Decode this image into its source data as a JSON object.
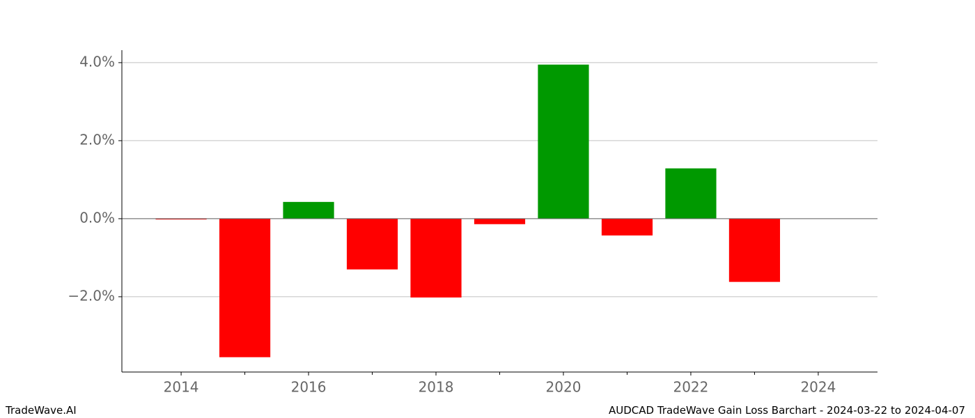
{
  "chart_data": {
    "type": "bar",
    "x": [
      2014,
      2015,
      2016,
      2017,
      2018,
      2019,
      2020,
      2021,
      2022,
      2023
    ],
    "values": [
      -0.02,
      -3.55,
      0.43,
      -1.3,
      -2.02,
      -0.14,
      3.95,
      -0.43,
      1.29,
      -1.62
    ],
    "colors": [
      "#ff0000",
      "#ff0000",
      "#009900",
      "#ff0000",
      "#ff0000",
      "#ff0000",
      "#009900",
      "#ff0000",
      "#009900",
      "#ff0000"
    ],
    "bar_width": 0.8,
    "xlim": [
      2013.07,
      2024.93
    ],
    "xticks": [
      2014,
      2016,
      2018,
      2020,
      2022,
      2024
    ],
    "xminorticks": [
      2015,
      2017,
      2019,
      2021,
      2023
    ],
    "ylim": [
      -3.93,
      4.32
    ],
    "yticks": [
      {
        "value": -2,
        "label": "−2.0%"
      },
      {
        "value": 0,
        "label": "0.0%"
      },
      {
        "value": 2,
        "label": "2.0%"
      },
      {
        "value": 4,
        "label": "4.0%"
      }
    ],
    "grid": true
  },
  "footer": {
    "left": "TradeWave.AI",
    "right": "AUDCAD TradeWave Gain Loss Barchart - 2024-03-22 to 2024-04-07"
  }
}
